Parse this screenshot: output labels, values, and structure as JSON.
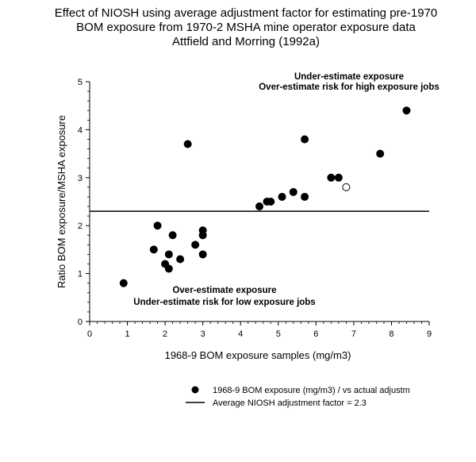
{
  "chart_data": {
    "type": "scatter",
    "title_lines": [
      "Effect of NIOSH using average adjustment factor for estimating pre-1970",
      "BOM exposure from 1970-2  MSHA mine operator exposure data",
      "Attfield and Morring (1992a)"
    ],
    "xlabel": "1968-9 BOM exposure samples (mg/m3)",
    "ylabel": "Ratio BOM exposure/MSHA exposure",
    "xlim": [
      0,
      9
    ],
    "ylim": [
      0,
      5
    ],
    "xticks": [
      0,
      1,
      2,
      3,
      4,
      5,
      6,
      7,
      8,
      9
    ],
    "yticks": [
      0,
      1,
      2,
      3,
      4,
      5
    ],
    "grid": false,
    "legend_position": "bottom-right",
    "annotations": [
      {
        "id": "upper",
        "lines": [
          "Under-estimate exposure",
          "Over-estimate risk for high exposure jobs"
        ]
      },
      {
        "id": "lower",
        "lines": [
          "Over-estimate exposure",
          "Under-estimate risk for low exposure jobs"
        ]
      }
    ],
    "series": [
      {
        "name": "1968-9 BOM exposure (mg/m3) / vs actual adjustm",
        "marker": "filled-circle",
        "color": "#000000",
        "points": [
          {
            "x": 0.9,
            "y": 0.8
          },
          {
            "x": 1.7,
            "y": 1.5
          },
          {
            "x": 1.8,
            "y": 2.0
          },
          {
            "x": 2.0,
            "y": 1.2
          },
          {
            "x": 2.1,
            "y": 1.4
          },
          {
            "x": 2.1,
            "y": 1.1
          },
          {
            "x": 2.2,
            "y": 1.8
          },
          {
            "x": 2.4,
            "y": 1.3
          },
          {
            "x": 2.6,
            "y": 3.7
          },
          {
            "x": 2.8,
            "y": 1.6
          },
          {
            "x": 3.0,
            "y": 1.4
          },
          {
            "x": 3.0,
            "y": 1.8
          },
          {
            "x": 3.0,
            "y": 1.9
          },
          {
            "x": 4.5,
            "y": 2.4
          },
          {
            "x": 4.7,
            "y": 2.5
          },
          {
            "x": 4.8,
            "y": 2.5
          },
          {
            "x": 5.1,
            "y": 2.6
          },
          {
            "x": 5.4,
            "y": 2.7
          },
          {
            "x": 5.7,
            "y": 2.6
          },
          {
            "x": 5.7,
            "y": 3.8
          },
          {
            "x": 6.4,
            "y": 3.0
          },
          {
            "x": 6.6,
            "y": 3.0
          },
          {
            "x": 7.7,
            "y": 3.5
          },
          {
            "x": 8.4,
            "y": 4.4
          }
        ]
      },
      {
        "name": "",
        "marker": "open-circle",
        "color": "#000000",
        "points": [
          {
            "x": 6.8,
            "y": 2.8
          }
        ]
      },
      {
        "name": "Average NIOSH adjustment factor = 2.3",
        "type": "hline",
        "y": 2.3,
        "color": "#000000"
      }
    ]
  }
}
